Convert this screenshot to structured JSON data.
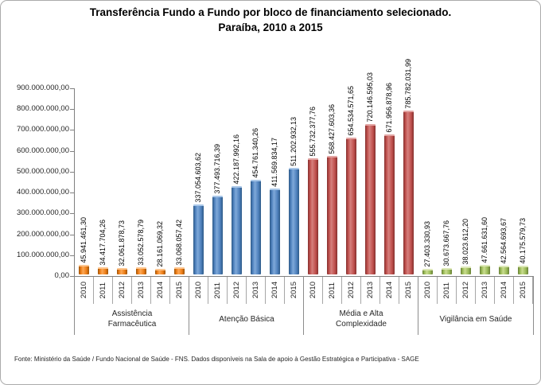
{
  "chart_data": {
    "type": "bar",
    "title_line1": "Transferência Fundo a Fundo por bloco de financiamento selecionado.",
    "title_line2": "Paraíba, 2010 a 2015",
    "source": "Fonte: Ministério da Saúde / Fundo Nacional de Saúde - FNS. Dados disponíveis na Sala de apoio à Gestão Estratégica e Participativa - SAGE",
    "y_axis": {
      "min": 0,
      "max": 900000000,
      "step": 100000000,
      "tick_labels": [
        "0,00",
        "100.000.000,00",
        "200.000.000,00",
        "300.000.000,00",
        "400.000.000,00",
        "500.000.000,00",
        "600.000.000,00",
        "700.000.000,00",
        "800.000.000,00",
        "900.000.000,00"
      ]
    },
    "grid": "off",
    "legend": "none",
    "years": [
      "2010",
      "2011",
      "2012",
      "2013",
      "2014",
      "2015"
    ],
    "groups": [
      {
        "name": "Assistência Farmacêutica",
        "color": {
          "main": "#ED7D17",
          "light": "#FCA957",
          "dark": "#9A5206",
          "bevel": "#FDC690"
        },
        "values": [
          45941461.3,
          34417704.26,
          32061878.73,
          33052578.79,
          28161069.32,
          33068057.42
        ],
        "labels": [
          "45.941.461,30",
          "34.417.704,26",
          "32.061.878,73",
          "33.052.578,79",
          "28.161.069,32",
          "33.068.057,42"
        ]
      },
      {
        "name": "Atenção Básica",
        "color": {
          "main": "#4F81BD",
          "light": "#7FA9D9",
          "dark": "#2D5A88",
          "bevel": "#A9C7E8"
        },
        "values": [
          337054603.62,
          377493716.39,
          422187992.16,
          454761340.26,
          411569834.17,
          511202932.13
        ],
        "labels": [
          "337.054.603,62",
          "377.493.716,39",
          "422.187.992,16",
          "454.761.340,26",
          "411.569.834,17",
          "511.202.932,13"
        ]
      },
      {
        "name": "Média e Alta Complexidade",
        "color": {
          "main": "#C0504D",
          "light": "#D5807D",
          "dark": "#84302E",
          "bevel": "#E2A5A3"
        },
        "values": [
          555732377.76,
          568427603.36,
          654534571.65,
          720146595.03,
          671956878.96,
          785782031.99
        ],
        "labels": [
          "555.732.377,76",
          "568.427.603,36",
          "654.534.571,65",
          "720.146.595,03",
          "671.956.878,96",
          "785.782.031,99"
        ]
      },
      {
        "name": "Vigilância em Saúde",
        "color": {
          "main": "#9BBB59",
          "light": "#C9DC8F",
          "dark": "#677F35",
          "bevel": "#DDE8B8"
        },
        "values": [
          27403330.93,
          30673667.76,
          38023612.2,
          47661631.6,
          42564693.67,
          40175579.73
        ],
        "labels": [
          "27.403.330,93",
          "30.673.667,76",
          "38.023.612,20",
          "47.661.631,60",
          "42.564.693,67",
          "40.175.579,73"
        ]
      }
    ]
  }
}
